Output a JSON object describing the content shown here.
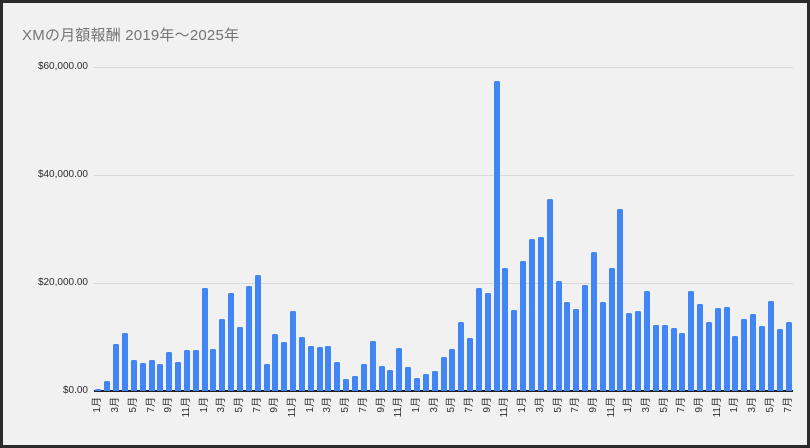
{
  "window": {
    "background": "#f1f1f1",
    "border_color": "#2b2b2b"
  },
  "chart_data": {
    "type": "bar",
    "title": "XMの月額報酬 2019年～2025年",
    "xlabel": "",
    "ylabel": "",
    "ylim": [
      0,
      60000
    ],
    "grid": "horizontal",
    "legend": "none",
    "bar_color": "#4285f4",
    "currency_format": "$#,##0.00",
    "y_ticks": [
      {
        "label": "$0.00",
        "value": 0
      },
      {
        "label": "$20,000.00",
        "value": 20000
      },
      {
        "label": "$40,000.00",
        "value": 40000
      },
      {
        "label": "$60,000.00",
        "value": 60000
      }
    ],
    "x_tick_label_suffix": "月",
    "x_tick_every_n_months": 2,
    "x_tick_rotation_deg": -90,
    "series": [
      {
        "year": 2019,
        "values": [
          400,
          1900,
          8700,
          10800,
          5700,
          5200,
          5700,
          5000,
          7200,
          5300,
          7600,
          7600
        ]
      },
      {
        "year": 2020,
        "values": [
          19000,
          7700,
          13300,
          18200,
          11900,
          19400,
          21400,
          5000,
          10500,
          9100,
          14800,
          10000
        ]
      },
      {
        "year": 2021,
        "values": [
          8300,
          8100,
          8300,
          5400,
          2300,
          2800,
          5000,
          9300,
          4700,
          3900,
          7900,
          4500
        ]
      },
      {
        "year": 2022,
        "values": [
          2400,
          3100,
          3700,
          6300,
          7700,
          12800,
          9900,
          19000,
          18200,
          57400,
          22700,
          15000
        ]
      },
      {
        "year": 2023,
        "values": [
          24000,
          28100,
          28500,
          35600,
          20400,
          16400,
          15200,
          19700,
          25700,
          16500,
          22800,
          33700
        ]
      },
      {
        "year": 2024,
        "values": [
          14400,
          14900,
          18600,
          12300,
          12200,
          11700,
          10700,
          18500,
          16200,
          12800,
          15300,
          15500
        ]
      },
      {
        "year": 2025,
        "values": [
          10200,
          13300,
          14300,
          12100,
          16700,
          11400,
          12700
        ]
      }
    ]
  }
}
